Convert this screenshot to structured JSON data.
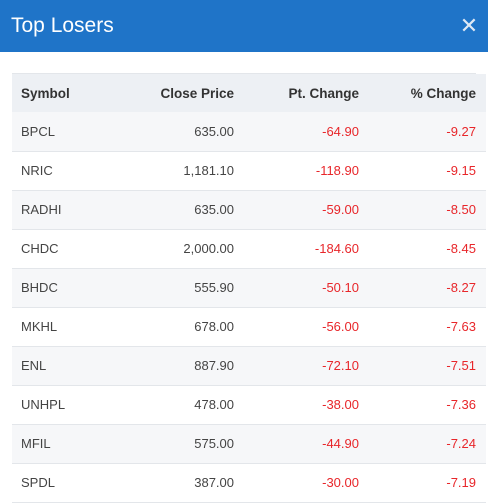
{
  "header": {
    "title": "Top Losers",
    "close_icon": "close-icon"
  },
  "table": {
    "columns": [
      "Symbol",
      "Close Price",
      "Pt. Change",
      "% Change"
    ],
    "rows": [
      [
        "BPCL",
        "635.00",
        "-64.90",
        "-9.27"
      ],
      [
        "NRIC",
        "1,181.10",
        "-118.90",
        "-9.15"
      ],
      [
        "RADHI",
        "635.00",
        "-59.00",
        "-8.50"
      ],
      [
        "CHDC",
        "2,000.00",
        "-184.60",
        "-8.45"
      ],
      [
        "BHDC",
        "555.90",
        "-50.10",
        "-8.27"
      ],
      [
        "MKHL",
        "678.00",
        "-56.00",
        "-7.63"
      ],
      [
        "ENL",
        "887.90",
        "-72.10",
        "-7.51"
      ],
      [
        "UNHPL",
        "478.00",
        "-38.00",
        "-7.36"
      ],
      [
        "MFIL",
        "575.00",
        "-44.90",
        "-7.24"
      ],
      [
        "SPDL",
        "387.00",
        "-30.00",
        "-7.19"
      ]
    ]
  },
  "colors": {
    "header_bg": "#1f74c8",
    "negative": "#e8262a"
  }
}
